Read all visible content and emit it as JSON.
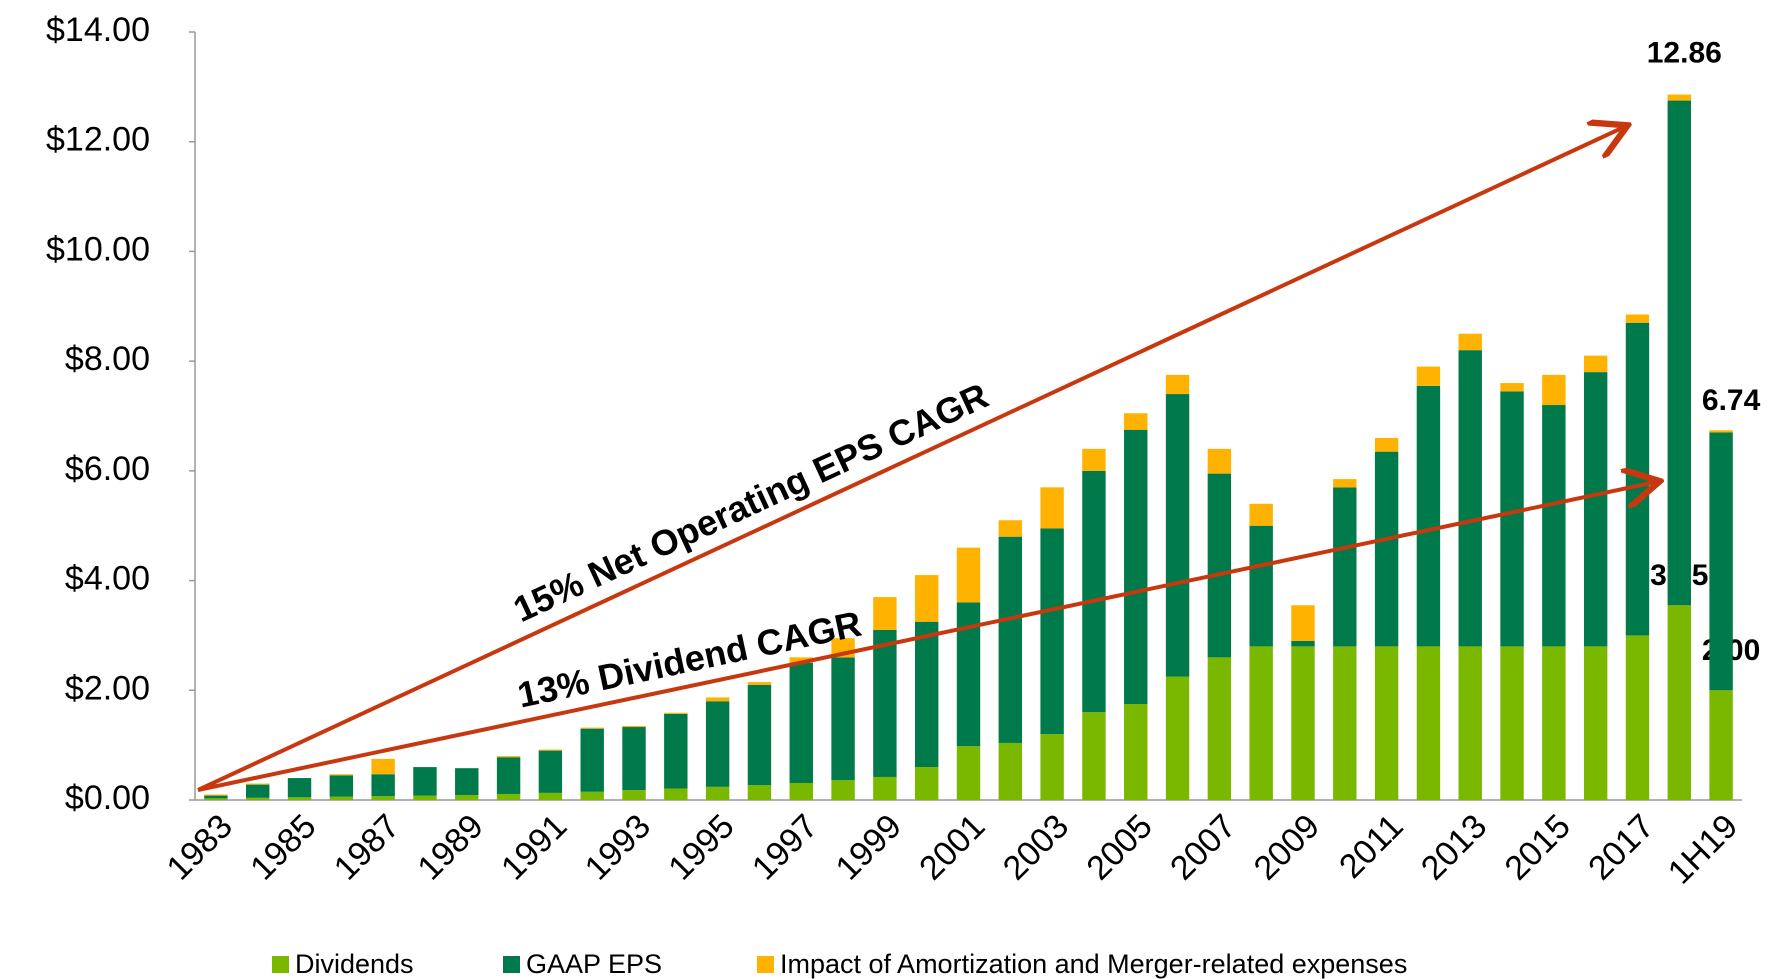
{
  "chart_data": {
    "type": "stacked_bar",
    "categories": [
      "1983",
      null,
      "1985",
      null,
      "1987",
      null,
      "1989",
      null,
      "1991",
      null,
      "1993",
      null,
      "1995",
      null,
      "1997",
      null,
      "1999",
      null,
      "2001",
      null,
      "2003",
      null,
      "2005",
      null,
      "2007",
      null,
      "2009",
      null,
      "2011",
      null,
      "2013",
      null,
      "2015",
      null,
      "2017",
      null,
      "1H19"
    ],
    "series": [
      {
        "name": "Dividends",
        "color": "#7ab800",
        "values": [
          0.03,
          0.04,
          0.05,
          0.06,
          0.07,
          0.08,
          0.09,
          0.11,
          0.13,
          0.15,
          0.18,
          0.21,
          0.24,
          0.27,
          0.31,
          0.36,
          0.42,
          0.6,
          0.98,
          1.04,
          1.2,
          1.6,
          1.75,
          2.25,
          2.6,
          2.8,
          2.8,
          2.8,
          2.8,
          2.8,
          2.8,
          2.8,
          2.8,
          2.8,
          3.0,
          3.55,
          2.0
        ],
        "value_labels": [
          null,
          null,
          null,
          null,
          null,
          null,
          null,
          null,
          null,
          null,
          null,
          null,
          null,
          null,
          null,
          null,
          null,
          null,
          null,
          null,
          null,
          null,
          null,
          null,
          null,
          null,
          null,
          null,
          null,
          null,
          null,
          null,
          null,
          null,
          null,
          "3.55",
          "2.00"
        ]
      },
      {
        "name": "GAAP EPS",
        "color": "#007a4a",
        "values": [
          0.05,
          0.24,
          0.35,
          0.39,
          0.4,
          0.52,
          0.49,
          0.67,
          0.77,
          1.15,
          1.15,
          1.36,
          1.56,
          1.83,
          2.19,
          2.24,
          2.68,
          2.65,
          2.62,
          3.76,
          3.75,
          4.4,
          5.0,
          5.15,
          3.35,
          2.2,
          0.1,
          2.9,
          3.55,
          4.75,
          5.4,
          4.65,
          4.4,
          5.0,
          5.7,
          9.2,
          4.7
        ]
      },
      {
        "name": "Impact of Amortization and Merger-related expenses",
        "color": "#ffb300",
        "values": [
          0.02,
          0.02,
          0.0,
          0.02,
          0.28,
          0.0,
          0.0,
          0.02,
          0.02,
          0.02,
          0.02,
          0.02,
          0.07,
          0.05,
          0.1,
          0.35,
          0.6,
          0.85,
          1.0,
          0.3,
          0.75,
          0.4,
          0.3,
          0.35,
          0.45,
          0.4,
          0.65,
          0.15,
          0.25,
          0.35,
          0.3,
          0.15,
          0.55,
          0.3,
          0.15,
          0.11,
          0.04
        ]
      }
    ],
    "total_labels": [
      "12.86",
      "6.74"
    ],
    "annotations": [
      "15% Net Operating EPS CAGR",
      "13% Dividend CAGR"
    ],
    "ylim": [
      0,
      14
    ],
    "yticks": [
      {
        "value": 0,
        "label": "$0.00"
      },
      {
        "value": 2,
        "label": "$2.00"
      },
      {
        "value": 4,
        "label": "$4.00"
      },
      {
        "value": 6,
        "label": "$6.00"
      },
      {
        "value": 8,
        "label": "$8.00"
      },
      {
        "value": 10,
        "label": "$10.00"
      },
      {
        "value": 12,
        "label": "$12.00"
      },
      {
        "value": 14,
        "label": "$14.00"
      }
    ],
    "legend": "bottom"
  }
}
